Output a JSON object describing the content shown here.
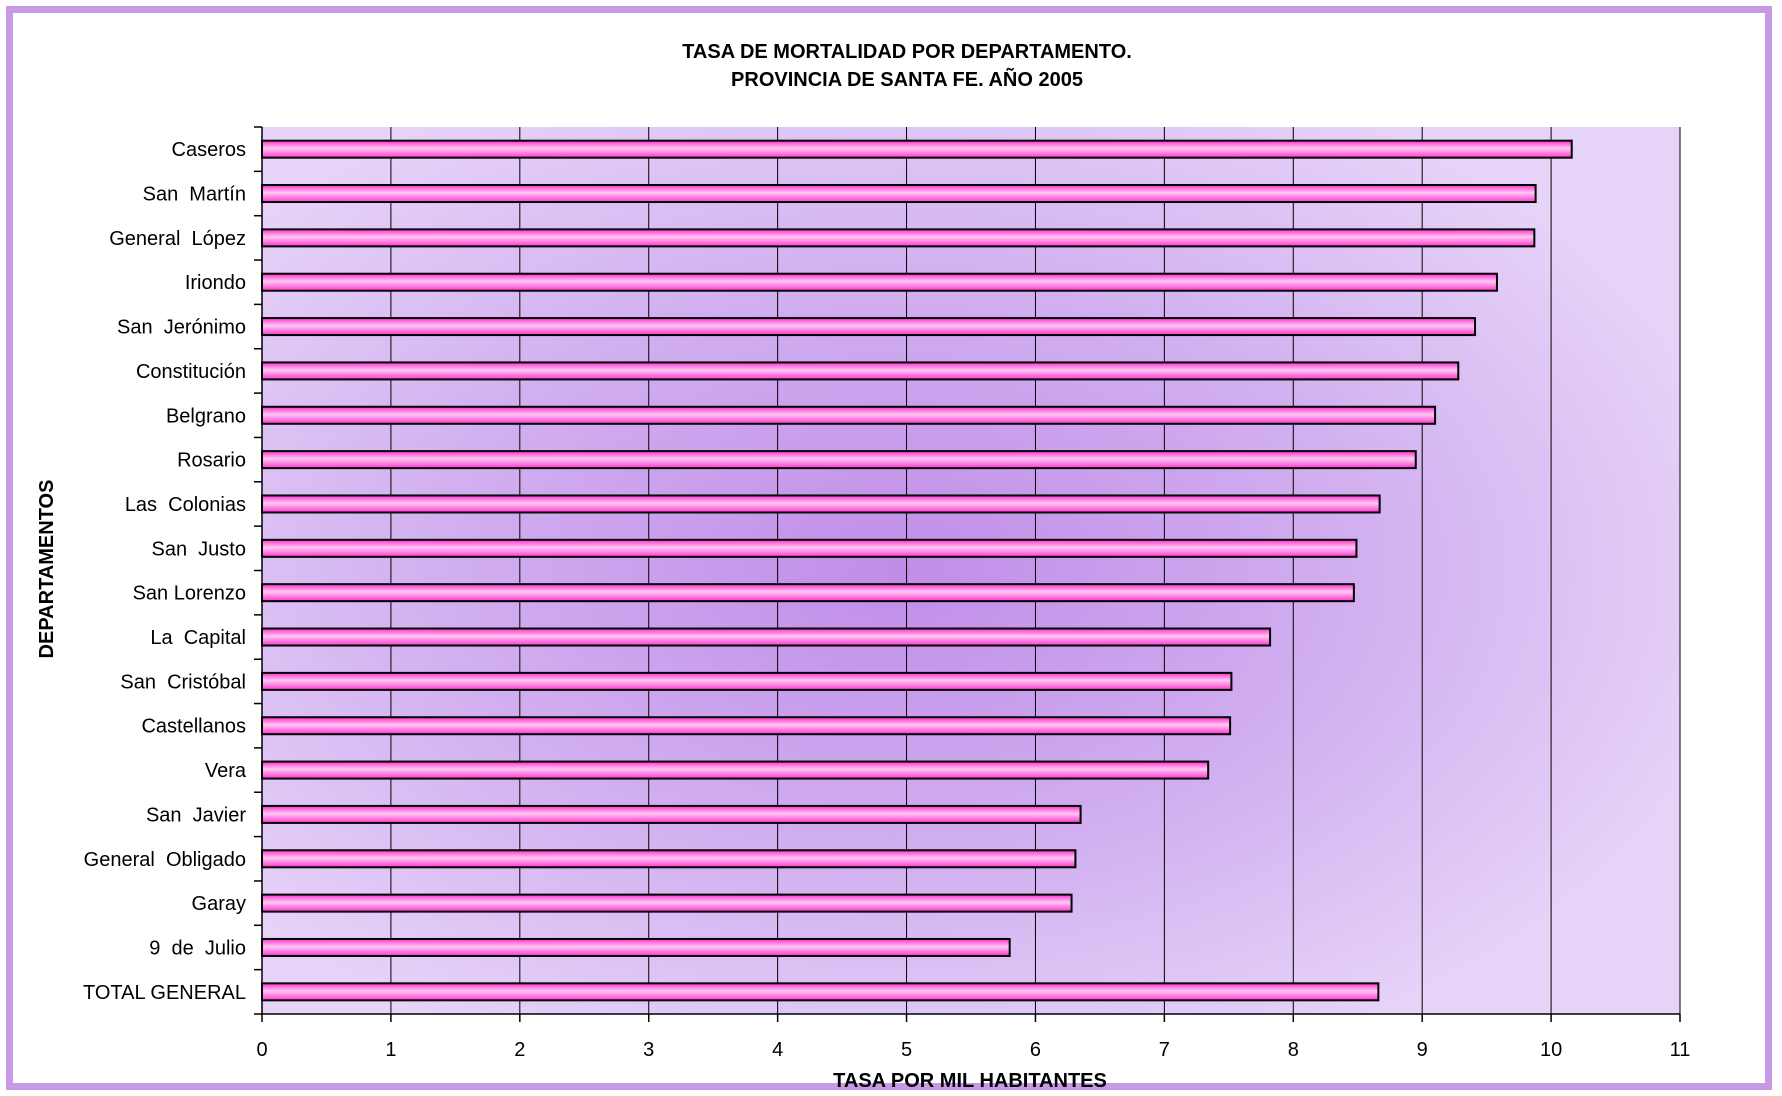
{
  "chart_data": {
    "type": "bar",
    "orientation": "horizontal",
    "title": "TASA DE MORTALIDAD POR DEPARTAMENTO.",
    "subtitle": "PROVINCIA DE SANTA FE. AÑO 2005",
    "xlabel": "TASA POR MIL HABITANTES",
    "ylabel": "DEPARTAMENTOS",
    "xlim": [
      0,
      11
    ],
    "xticks": [
      "0",
      "1",
      "2",
      "3",
      "4",
      "5",
      "6",
      "7",
      "8",
      "9",
      "10",
      "11"
    ],
    "grid": "vertical",
    "colors": {
      "bar": "#ff3fd2",
      "bar_light": "#ffd6f6",
      "plot_bg": "#dcc3f5",
      "plot_bg_center": "#c08de8",
      "frame": "#c79ae6"
    },
    "categories": [
      "Caseros",
      "San  Martín",
      "General  López",
      "Iriondo",
      "San  Jerónimo",
      "Constitución",
      "Belgrano",
      "Rosario",
      "Las  Colonias",
      "San  Justo",
      "San Lorenzo",
      "La  Capital",
      "San  Cristóbal",
      "Castellanos",
      "Vera",
      "San  Javier",
      "General  Obligado",
      "Garay",
      "9  de  Julio",
      "TOTAL GENERAL"
    ],
    "values": [
      10.16,
      9.88,
      9.87,
      9.58,
      9.41,
      9.28,
      9.1,
      8.95,
      8.67,
      8.49,
      8.47,
      7.82,
      7.52,
      7.51,
      7.34,
      6.35,
      6.31,
      6.28,
      5.8,
      8.66
    ]
  }
}
